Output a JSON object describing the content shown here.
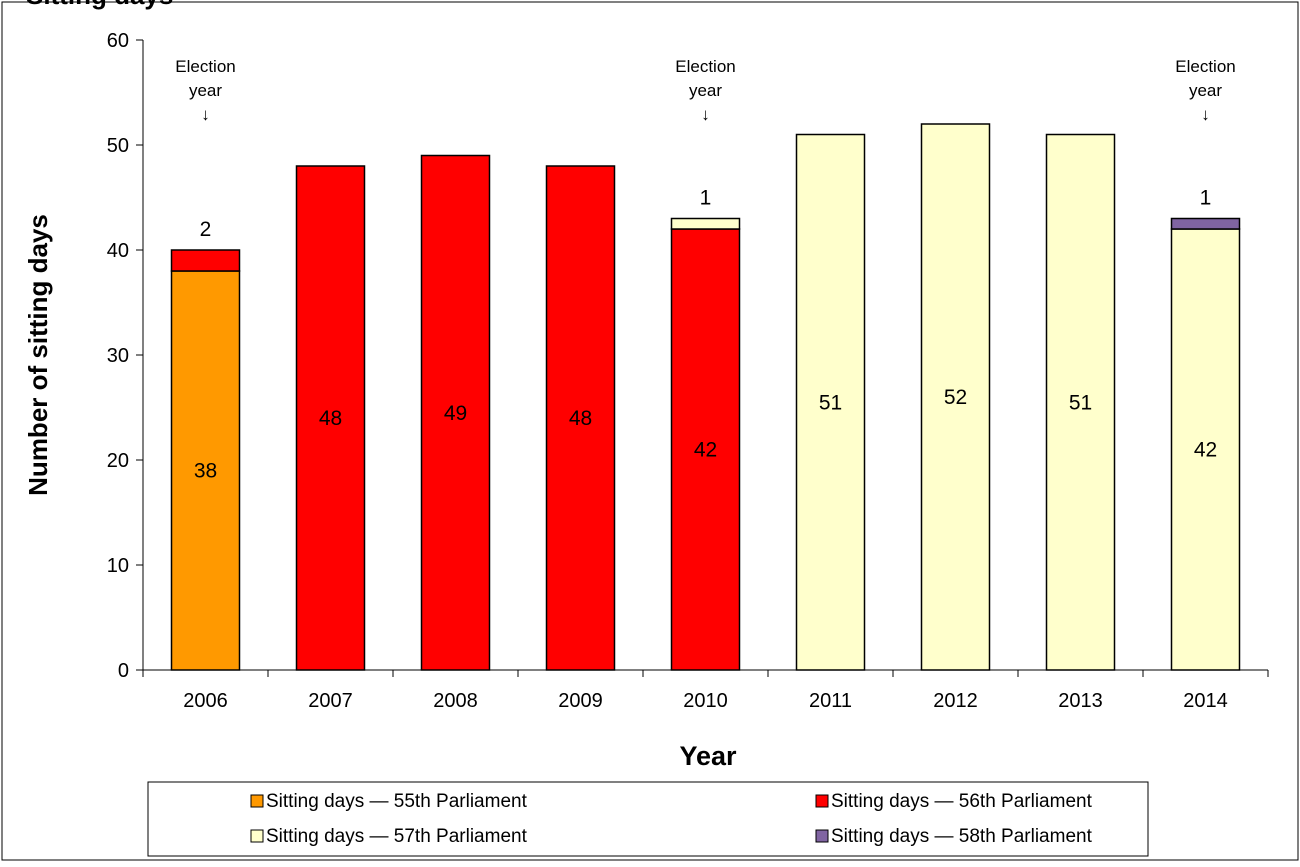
{
  "chart_data": {
    "type": "bar",
    "stacked": true,
    "title": "Sitting days",
    "xlabel": "Year",
    "ylabel": "Number of sitting days",
    "ylim": [
      0,
      60
    ],
    "yticks": [
      0,
      10,
      20,
      30,
      40,
      50,
      60
    ],
    "categories": [
      "2006",
      "2007",
      "2008",
      "2009",
      "2010",
      "2011",
      "2012",
      "2013",
      "2014"
    ],
    "series": [
      {
        "name": "Sitting days — 55th Parliament",
        "color": "#FF9900",
        "values": [
          38,
          0,
          0,
          0,
          0,
          0,
          0,
          0,
          0
        ]
      },
      {
        "name": "Sitting days — 56th Parliament",
        "color": "#FF0000",
        "values": [
          2,
          48,
          49,
          48,
          42,
          0,
          0,
          0,
          0
        ]
      },
      {
        "name": "Sitting days — 57th Parliament",
        "color": "#FFFFCC",
        "values": [
          0,
          0,
          0,
          0,
          1,
          51,
          52,
          51,
          42
        ]
      },
      {
        "name": "Sitting days — 58th Parliament",
        "color": "#8064A2",
        "values": [
          0,
          0,
          0,
          0,
          0,
          0,
          0,
          0,
          1
        ]
      }
    ],
    "data_labels": [
      {
        "category": "2006",
        "value": 38,
        "position": "inside"
      },
      {
        "category": "2006",
        "value": 2,
        "position": "above"
      },
      {
        "category": "2007",
        "value": 48,
        "position": "inside"
      },
      {
        "category": "2008",
        "value": 49,
        "position": "inside"
      },
      {
        "category": "2009",
        "value": 48,
        "position": "inside"
      },
      {
        "category": "2010",
        "value": 42,
        "position": "inside"
      },
      {
        "category": "2010",
        "value": 1,
        "position": "above"
      },
      {
        "category": "2011",
        "value": 51,
        "position": "inside"
      },
      {
        "category": "2012",
        "value": 52,
        "position": "inside"
      },
      {
        "category": "2013",
        "value": 51,
        "position": "inside"
      },
      {
        "category": "2014",
        "value": 42,
        "position": "inside"
      },
      {
        "category": "2014",
        "value": 1,
        "position": "above"
      }
    ],
    "annotations": [
      {
        "category": "2006",
        "lines": [
          "Election",
          "year",
          "↓"
        ]
      },
      {
        "category": "2010",
        "lines": [
          "Election",
          "year",
          "↓"
        ]
      },
      {
        "category": "2014",
        "lines": [
          "Election",
          "year",
          "↓"
        ]
      }
    ],
    "legend": {
      "position": "bottom",
      "columns": 2
    },
    "grid": false
  }
}
